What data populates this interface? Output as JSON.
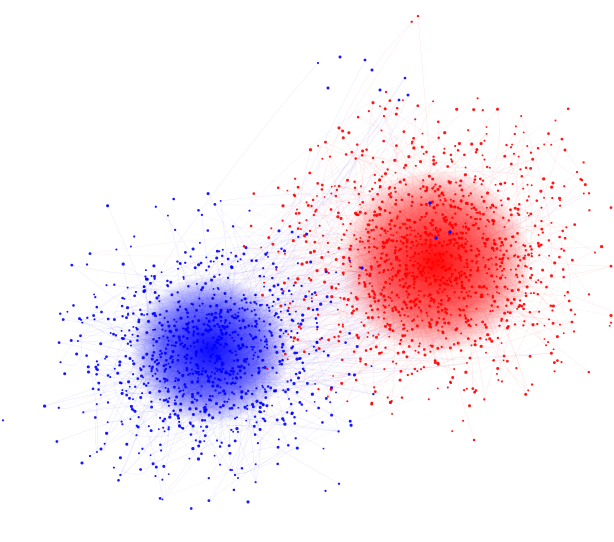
{
  "diagram": {
    "type": "network-graph",
    "layout": "force-directed",
    "background_color": "#ffffff",
    "communities": [
      {
        "id": "blue-community",
        "node_color": "#0000ff",
        "edge_color": "#3a3aff",
        "relative_size": "smaller",
        "position_description": "lower-left"
      },
      {
        "id": "red-community",
        "node_color": "#ff0000",
        "edge_color": "#ff2a2a",
        "relative_size": "larger",
        "position_description": "upper-right"
      }
    ],
    "inter_community_edges_color": "#8a6cff"
  }
}
